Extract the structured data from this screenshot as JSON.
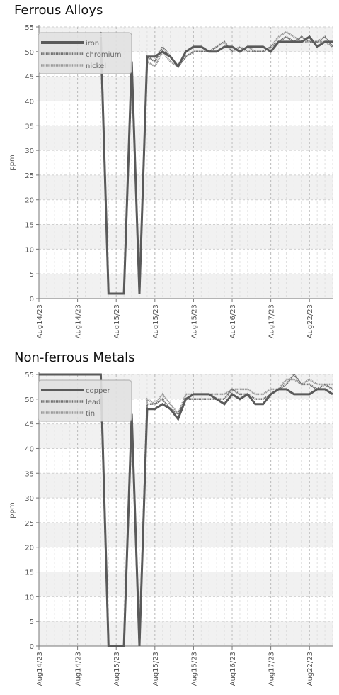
{
  "chart_data": [
    {
      "type": "line",
      "title": "Ferrous Alloys",
      "ylabel": "ppm",
      "ylim": [
        0,
        55
      ],
      "yticks": [
        0,
        5,
        10,
        15,
        20,
        25,
        30,
        35,
        40,
        45,
        50,
        55
      ],
      "xlim": [
        0,
        38
      ],
      "xticks": [
        {
          "x": 0,
          "label": "Aug14/23"
        },
        {
          "x": 5,
          "label": "Aug14/23"
        },
        {
          "x": 10,
          "label": "Aug15/23"
        },
        {
          "x": 15,
          "label": "Aug15/23"
        },
        {
          "x": 20,
          "label": "Aug15/23"
        },
        {
          "x": 25,
          "label": "Aug16/23"
        },
        {
          "x": 30,
          "label": "Aug17/23"
        },
        {
          "x": 35,
          "label": "Aug22/23"
        }
      ],
      "grid": true,
      "legend": "top-left",
      "series": [
        {
          "name": "iron",
          "color": "#5a5a5a",
          "style": "solid",
          "values": [
            [
              8,
              53
            ],
            [
              9,
              1
            ],
            [
              10,
              1
            ],
            [
              11,
              1
            ],
            [
              12,
              48
            ],
            [
              13,
              1
            ],
            [
              14,
              49
            ],
            [
              15,
              49
            ],
            [
              16,
              50
            ],
            [
              17,
              49
            ],
            [
              18,
              47
            ],
            [
              19,
              50
            ],
            [
              20,
              51
            ],
            [
              21,
              51
            ],
            [
              22,
              50
            ],
            [
              23,
              50
            ],
            [
              24,
              51
            ],
            [
              25,
              51
            ],
            [
              26,
              50
            ],
            [
              27,
              51
            ],
            [
              28,
              51
            ],
            [
              29,
              51
            ],
            [
              30,
              50
            ],
            [
              31,
              52
            ],
            [
              32,
              52
            ],
            [
              33,
              52
            ],
            [
              34,
              52
            ],
            [
              35,
              53
            ],
            [
              36,
              51
            ],
            [
              37,
              52
            ],
            [
              38,
              52
            ]
          ]
        },
        {
          "name": "chromium",
          "color": "#727272",
          "style": "dotted",
          "values": [
            [
              8,
              54
            ],
            [
              9,
              1
            ],
            [
              10,
              1
            ],
            [
              11,
              1
            ],
            [
              12,
              48
            ],
            [
              13,
              1
            ],
            [
              14,
              49
            ],
            [
              15,
              48
            ],
            [
              16,
              51
            ],
            [
              17,
              49
            ],
            [
              18,
              47
            ],
            [
              19,
              49
            ],
            [
              20,
              50
            ],
            [
              21,
              50
            ],
            [
              22,
              50
            ],
            [
              23,
              51
            ],
            [
              24,
              52
            ],
            [
              25,
              50
            ],
            [
              26,
              51
            ],
            [
              27,
              50
            ],
            [
              28,
              50
            ],
            [
              29,
              50
            ],
            [
              30,
              51
            ],
            [
              31,
              52
            ],
            [
              32,
              53
            ],
            [
              33,
              52
            ],
            [
              34,
              53
            ],
            [
              35,
              52
            ],
            [
              36,
              52
            ],
            [
              37,
              53
            ],
            [
              38,
              51
            ]
          ]
        },
        {
          "name": "nickel",
          "color": "#9a9a9a",
          "style": "dotted",
          "values": [
            [
              8,
              53
            ],
            [
              9,
              1
            ],
            [
              10,
              1
            ],
            [
              11,
              1
            ],
            [
              12,
              47
            ],
            [
              13,
              1
            ],
            [
              14,
              48
            ],
            [
              15,
              47
            ],
            [
              16,
              50
            ],
            [
              17,
              48
            ],
            [
              18,
              47
            ],
            [
              19,
              49
            ],
            [
              20,
              50
            ],
            [
              21,
              50
            ],
            [
              22,
              50
            ],
            [
              23,
              50
            ],
            [
              24,
              51
            ],
            [
              25,
              51
            ],
            [
              26,
              50
            ],
            [
              27,
              51
            ],
            [
              28,
              50
            ],
            [
              29,
              50
            ],
            [
              30,
              51
            ],
            [
              31,
              53
            ],
            [
              32,
              54
            ],
            [
              33,
              53
            ],
            [
              34,
              52
            ],
            [
              35,
              52
            ],
            [
              36,
              52
            ],
            [
              37,
              52
            ],
            [
              38,
              51
            ]
          ]
        }
      ]
    },
    {
      "type": "line",
      "title": "Non-ferrous Metals",
      "ylabel": "ppm",
      "ylim": [
        0,
        55
      ],
      "yticks": [
        0,
        5,
        10,
        15,
        20,
        25,
        30,
        35,
        40,
        45,
        50,
        55
      ],
      "xlim": [
        0,
        38
      ],
      "xticks": [
        {
          "x": 0,
          "label": "Aug14/23"
        },
        {
          "x": 5,
          "label": "Aug14/23"
        },
        {
          "x": 10,
          "label": "Aug15/23"
        },
        {
          "x": 15,
          "label": "Aug15/23"
        },
        {
          "x": 20,
          "label": "Aug15/23"
        },
        {
          "x": 25,
          "label": "Aug16/23"
        },
        {
          "x": 30,
          "label": "Aug17/23"
        },
        {
          "x": 35,
          "label": "Aug22/23"
        }
      ],
      "grid": true,
      "legend": "top-left",
      "series": [
        {
          "name": "copper",
          "color": "#5a5a5a",
          "style": "solid",
          "values": [
            [
              0,
              55
            ],
            [
              8,
              55
            ],
            [
              9,
              0
            ],
            [
              10,
              0
            ],
            [
              11,
              0
            ],
            [
              12,
              47
            ],
            [
              13,
              0
            ],
            [
              14,
              48
            ],
            [
              15,
              48
            ],
            [
              16,
              49
            ],
            [
              17,
              48
            ],
            [
              18,
              46
            ],
            [
              19,
              50
            ],
            [
              20,
              51
            ],
            [
              21,
              51
            ],
            [
              22,
              51
            ],
            [
              23,
              50
            ],
            [
              24,
              49
            ],
            [
              25,
              51
            ],
            [
              26,
              50
            ],
            [
              27,
              51
            ],
            [
              28,
              49
            ],
            [
              29,
              49
            ],
            [
              30,
              51
            ],
            [
              31,
              52
            ],
            [
              32,
              52
            ],
            [
              33,
              51
            ],
            [
              34,
              51
            ],
            [
              35,
              51
            ],
            [
              36,
              52
            ],
            [
              37,
              52
            ],
            [
              38,
              51
            ]
          ]
        },
        {
          "name": "lead",
          "color": "#727272",
          "style": "dotted",
          "values": [
            [
              8,
              54
            ],
            [
              9,
              0
            ],
            [
              10,
              0
            ],
            [
              11,
              0
            ],
            [
              12,
              47
            ],
            [
              13,
              0
            ],
            [
              14,
              49
            ],
            [
              15,
              49
            ],
            [
              16,
              50
            ],
            [
              17,
              48
            ],
            [
              18,
              47
            ],
            [
              19,
              50
            ],
            [
              20,
              50
            ],
            [
              21,
              50
            ],
            [
              22,
              50
            ],
            [
              23,
              50
            ],
            [
              24,
              50
            ],
            [
              25,
              52
            ],
            [
              26,
              51
            ],
            [
              27,
              51
            ],
            [
              28,
              50
            ],
            [
              29,
              50
            ],
            [
              30,
              51
            ],
            [
              31,
              52
            ],
            [
              32,
              53
            ],
            [
              33,
              55
            ],
            [
              34,
              53
            ],
            [
              35,
              53
            ],
            [
              36,
              52
            ],
            [
              37,
              53
            ],
            [
              38,
              52
            ]
          ]
        },
        {
          "name": "tin",
          "color": "#9a9a9a",
          "style": "dotted",
          "values": [
            [
              8,
              54
            ],
            [
              9,
              0
            ],
            [
              10,
              0
            ],
            [
              11,
              0
            ],
            [
              12,
              46
            ],
            [
              13,
              0
            ],
            [
              14,
              50
            ],
            [
              15,
              49
            ],
            [
              16,
              51
            ],
            [
              17,
              49
            ],
            [
              18,
              47
            ],
            [
              19,
              51
            ],
            [
              20,
              51
            ],
            [
              21,
              51
            ],
            [
              22,
              51
            ],
            [
              23,
              51
            ],
            [
              24,
              51
            ],
            [
              25,
              52
            ],
            [
              26,
              52
            ],
            [
              27,
              52
            ],
            [
              28,
              51
            ],
            [
              29,
              51
            ],
            [
              30,
              52
            ],
            [
              31,
              52
            ],
            [
              32,
              54
            ],
            [
              33,
              54
            ],
            [
              34,
              53
            ],
            [
              35,
              54
            ],
            [
              36,
              53
            ],
            [
              37,
              53
            ],
            [
              38,
              53
            ]
          ]
        }
      ]
    }
  ]
}
